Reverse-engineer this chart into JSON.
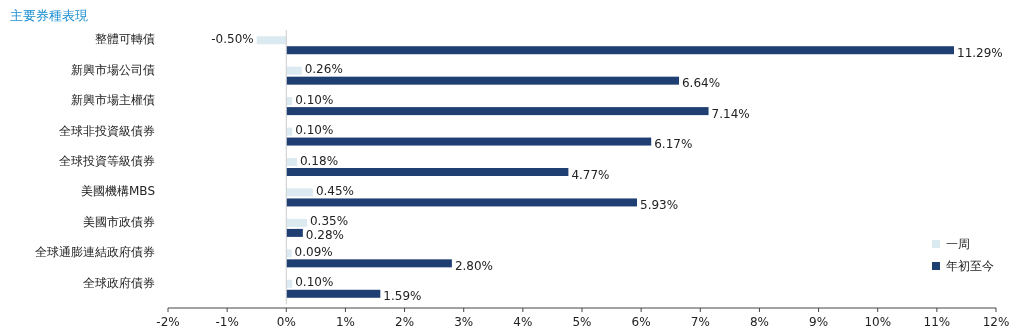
{
  "chart_data": {
    "type": "bar",
    "orientation": "horizontal",
    "title": "主要券種表現",
    "categories": [
      "整體可轉債",
      "新興市場公司債",
      "新興市場主權債",
      "全球非投資級債券",
      "全球投資等級債券",
      "美國機構MBS",
      "美國市政債券",
      "全球通膨連結政府債券",
      "全球政府債券"
    ],
    "series": [
      {
        "name": "一周",
        "color": "#dbe9f1",
        "values": [
          -0.5,
          0.26,
          0.1,
          0.1,
          0.18,
          0.45,
          0.35,
          0.09,
          0.1
        ],
        "value_labels": [
          "-0.50%",
          "0.26%",
          "0.10%",
          "0.10%",
          "0.18%",
          "0.45%",
          "0.35%",
          "0.09%",
          "0.10%"
        ]
      },
      {
        "name": "年初至今",
        "color": "#1f3f73",
        "values": [
          11.29,
          6.64,
          7.14,
          6.17,
          4.77,
          5.93,
          0.28,
          2.8,
          1.59
        ],
        "value_labels": [
          "11.29%",
          "6.64%",
          "7.14%",
          "6.17%",
          "4.77%",
          "5.93%",
          "0.28%",
          "2.80%",
          "1.59%"
        ]
      }
    ],
    "xlim": [
      -2,
      12
    ],
    "xticks": [
      {
        "value": -2,
        "label": "-2%"
      },
      {
        "value": -1,
        "label": "-1%"
      },
      {
        "value": 0,
        "label": "0%"
      },
      {
        "value": 1,
        "label": "1%"
      },
      {
        "value": 2,
        "label": "2%"
      },
      {
        "value": 3,
        "label": "3%"
      },
      {
        "value": 4,
        "label": "4%"
      },
      {
        "value": 5,
        "label": "5%"
      },
      {
        "value": 6,
        "label": "6%"
      },
      {
        "value": 7,
        "label": "7%"
      },
      {
        "value": 8,
        "label": "8%"
      },
      {
        "value": 9,
        "label": "9%"
      },
      {
        "value": 10,
        "label": "10%"
      },
      {
        "value": 11,
        "label": "11%"
      },
      {
        "value": 12,
        "label": "12%"
      }
    ],
    "legend": "bottom right"
  }
}
